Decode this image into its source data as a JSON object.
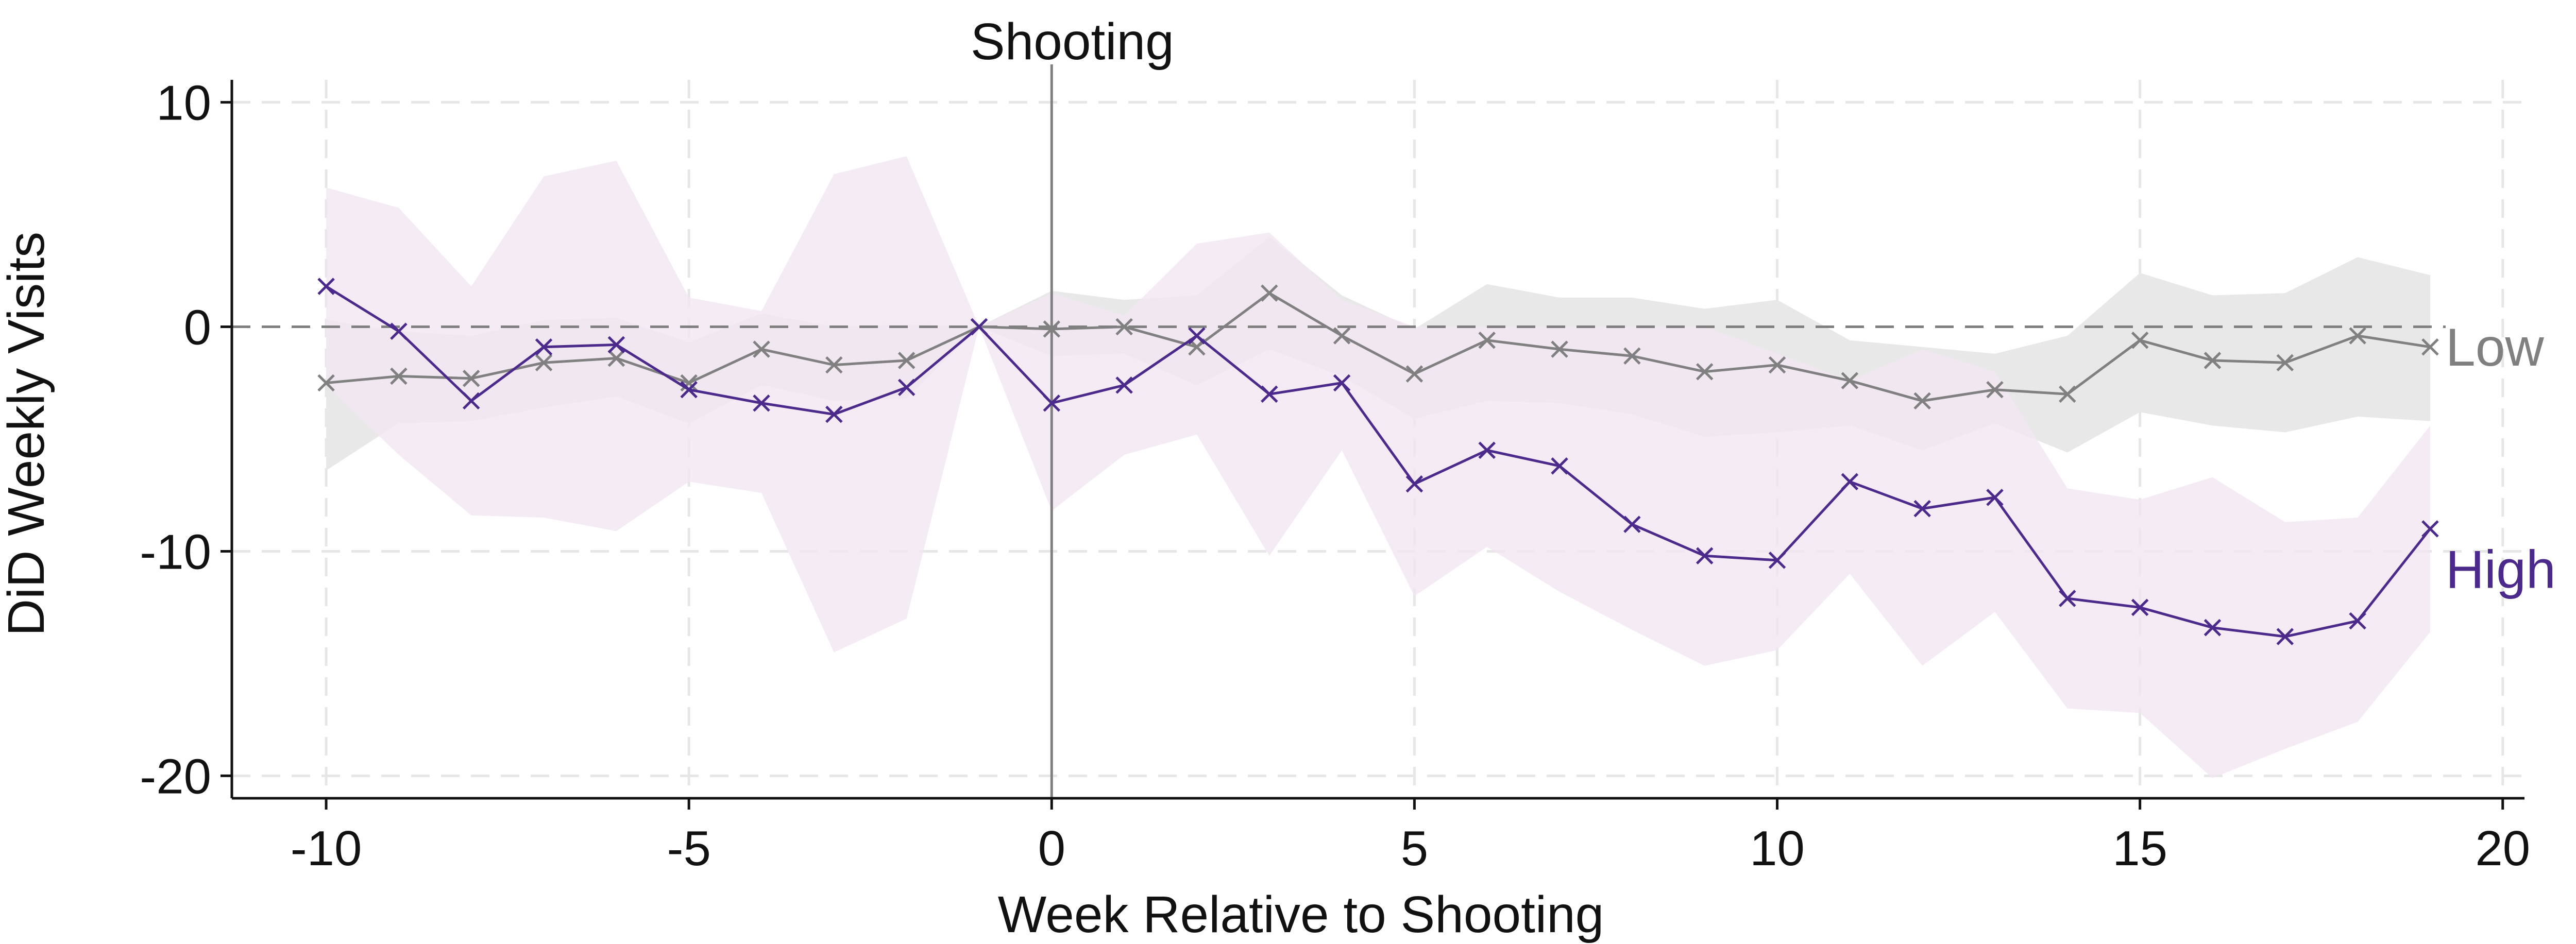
{
  "chart_data": {
    "type": "line",
    "xlabel": "Week Relative to Shooting",
    "ylabel": "DiD Weekly Visits",
    "xlim": [
      -11.3,
      20.3
    ],
    "ylim": [
      -21,
      11
    ],
    "xticks": [
      -10,
      -5,
      0,
      5,
      10,
      15,
      20
    ],
    "yticks": [
      10,
      0,
      -10,
      -20
    ],
    "grid": true,
    "reference_hline": 0,
    "event_line": {
      "x": 0,
      "label": "Shooting"
    },
    "x": [
      -10,
      -9,
      -8,
      -7,
      -6,
      -5,
      -4,
      -3,
      -2,
      -1,
      0,
      1,
      2,
      3,
      4,
      5,
      6,
      7,
      8,
      9,
      10,
      11,
      12,
      13,
      14,
      15,
      16,
      17,
      18,
      19
    ],
    "series": [
      {
        "name": "Low",
        "color": "#808080",
        "band_color": "#e8e8e8",
        "values": [
          -2.5,
          -2.2,
          -2.3,
          -1.6,
          -1.4,
          -2.5,
          -1.0,
          -1.7,
          -1.5,
          0.0,
          -0.1,
          0.0,
          -0.9,
          1.5,
          -0.4,
          -2.1,
          -0.6,
          -1.0,
          -1.3,
          -2.0,
          -1.7,
          -2.4,
          -3.3,
          -2.8,
          -3.0,
          -0.6,
          -1.5,
          -1.6,
          -0.4,
          -0.9
        ],
        "ci_upper": [
          0.3,
          -0.2,
          -0.4,
          0.3,
          0.4,
          -0.7,
          0.6,
          0.0,
          0.1,
          0.0,
          1.6,
          1.2,
          1.4,
          4.0,
          1.4,
          -0.1,
          1.9,
          1.3,
          1.3,
          0.8,
          1.2,
          -0.6,
          -0.9,
          -1.2,
          -0.4,
          2.4,
          1.4,
          1.5,
          3.1,
          2.3
        ],
        "ci_lower": [
          -6.4,
          -4.3,
          -4.2,
          -3.6,
          -3.1,
          -4.3,
          -2.6,
          -3.3,
          -3.2,
          0.0,
          -1.3,
          -1.2,
          -2.6,
          -1.0,
          -2.2,
          -4.1,
          -3.3,
          -3.4,
          -3.9,
          -4.9,
          -4.7,
          -4.4,
          -5.5,
          -4.3,
          -5.6,
          -3.8,
          -4.4,
          -4.7,
          -4.0,
          -4.2
        ]
      },
      {
        "name": "High",
        "color": "#4b2a8c",
        "band_color": "#f2e6f2",
        "values": [
          1.8,
          -0.2,
          -3.3,
          -0.9,
          -0.8,
          -2.8,
          -3.4,
          -3.9,
          -2.7,
          0.0,
          -3.4,
          -2.6,
          -0.4,
          -3.0,
          -2.5,
          -7.0,
          -5.5,
          -6.2,
          -8.8,
          -10.2,
          -10.4,
          -6.9,
          -8.1,
          -7.6,
          -12.1,
          -12.5,
          -13.4,
          -13.8,
          -13.1,
          -9.0
        ],
        "ci_upper": [
          6.2,
          5.3,
          1.8,
          6.7,
          7.4,
          1.3,
          0.7,
          6.8,
          7.6,
          0.0,
          1.5,
          0.5,
          3.7,
          4.2,
          1.2,
          0.0,
          0.0,
          0.0,
          0.0,
          0.0,
          -1.2,
          -2.4,
          -1.0,
          -2.0,
          -7.2,
          -7.7,
          -6.7,
          -8.7,
          -8.5,
          -4.4
        ],
        "ci_lower": [
          -2.6,
          -5.7,
          -8.4,
          -8.5,
          -9.1,
          -6.9,
          -7.4,
          -14.5,
          -13.0,
          0.0,
          -8.2,
          -5.7,
          -4.8,
          -10.2,
          -5.5,
          -12.0,
          -9.8,
          -11.8,
          -13.5,
          -15.1,
          -14.4,
          -11.0,
          -15.1,
          -12.7,
          -17.0,
          -17.2,
          -20.1,
          -18.8,
          -17.6,
          -13.6
        ]
      }
    ]
  }
}
